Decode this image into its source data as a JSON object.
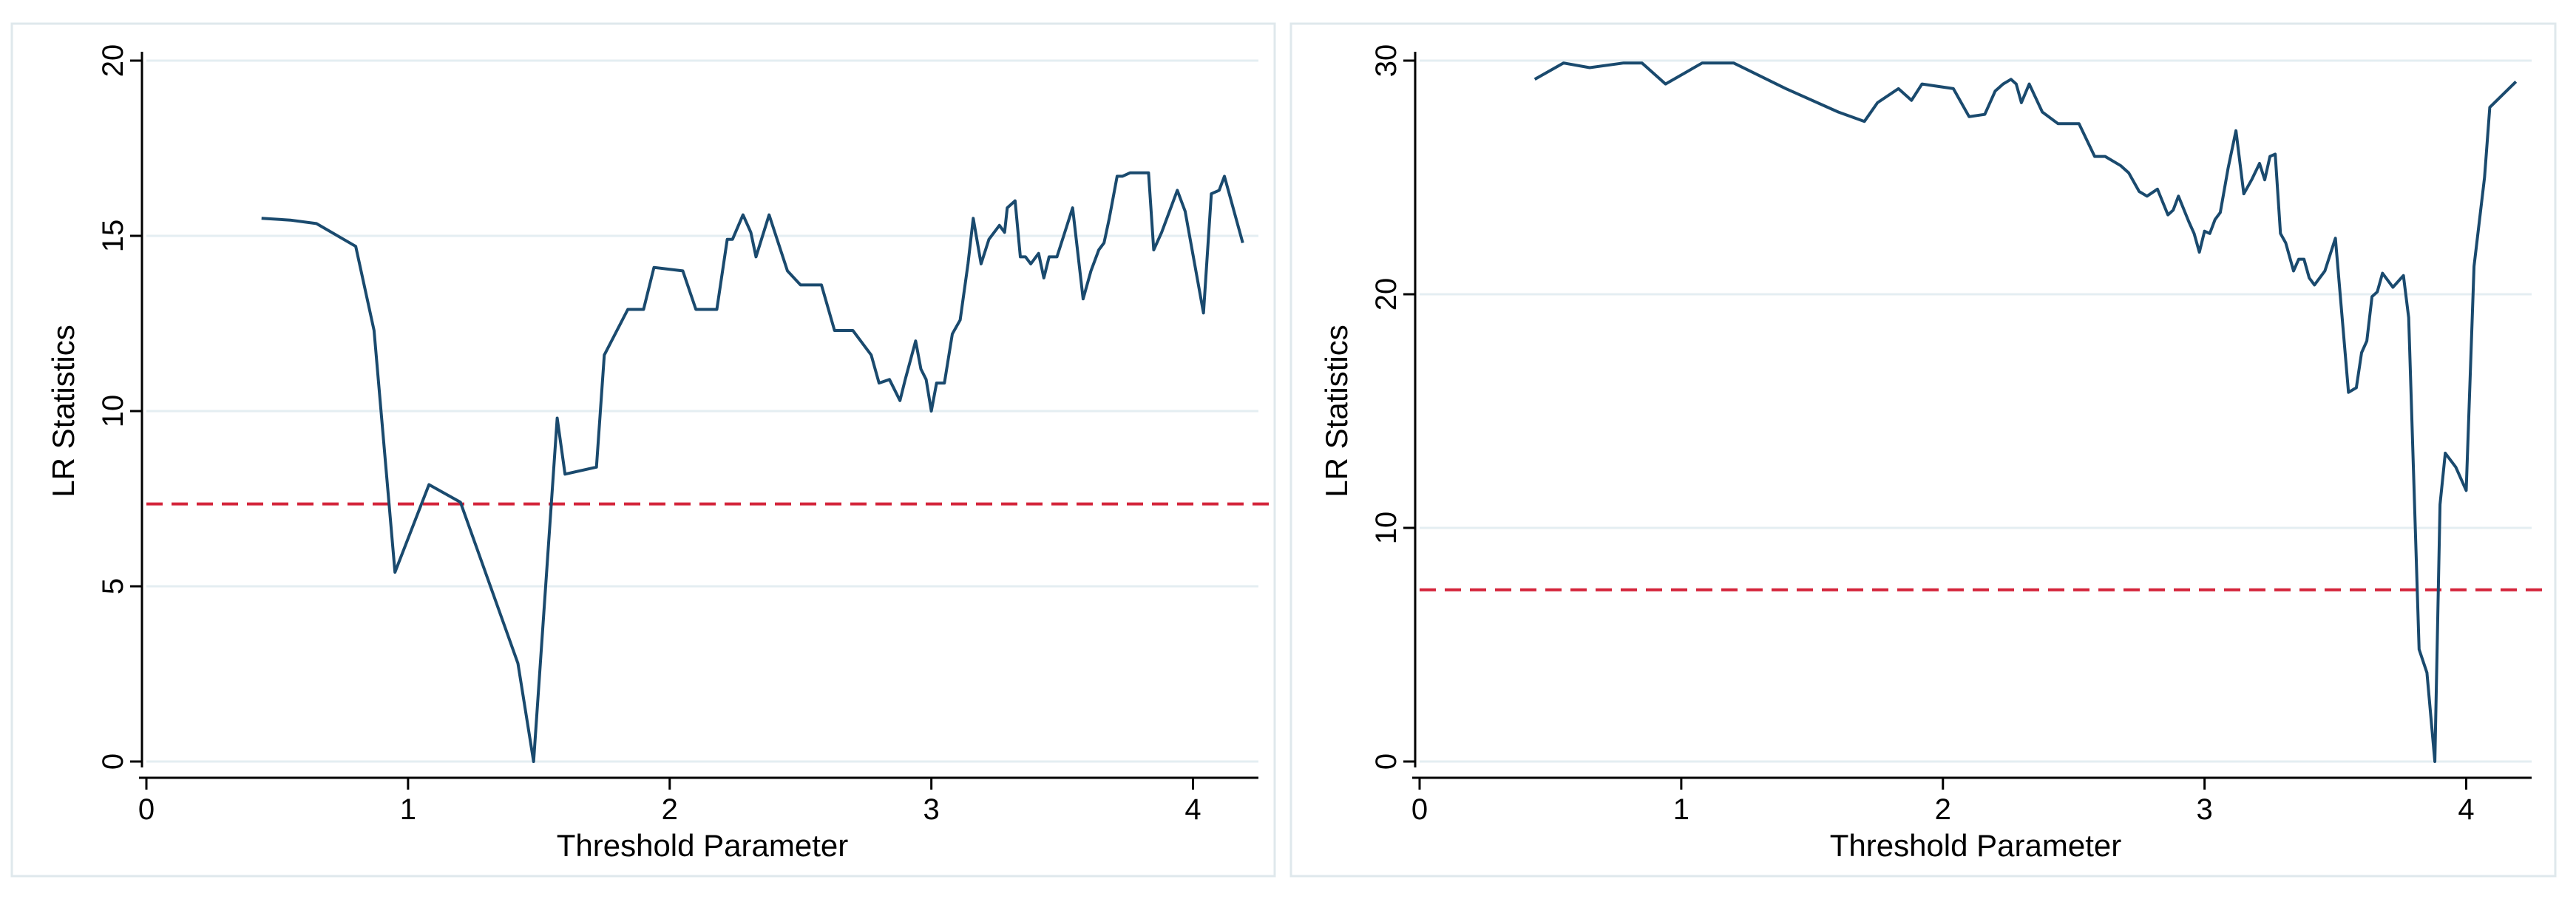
{
  "colors": {
    "background": "#ffffff",
    "panel_border": "#dfe8ec",
    "grid": "#e4eef2",
    "series_line": "#1a4a6e",
    "reference_line": "#d4243a",
    "axis": "#000000"
  },
  "chart_data": [
    {
      "type": "line",
      "title": "",
      "xlabel": "Threshold Parameter",
      "ylabel": "LR Statistics",
      "xlim": [
        0,
        4.25
      ],
      "ylim": [
        0,
        20
      ],
      "xticks": [
        0,
        1,
        2,
        3,
        4
      ],
      "yticks": [
        0,
        5,
        10,
        15,
        20
      ],
      "grid": true,
      "reference_line": {
        "y": 7.35,
        "style": "dashed"
      },
      "series": [
        {
          "x": [
            0.44,
            0.55,
            0.65,
            0.8,
            0.87,
            0.95,
            1.08,
            1.2,
            1.42,
            1.48,
            1.57,
            1.6,
            1.72,
            1.75,
            1.84,
            1.9,
            1.94,
            2.05,
            2.1,
            2.18,
            2.22,
            2.24,
            2.28,
            2.31,
            2.33,
            2.38,
            2.45,
            2.5,
            2.55,
            2.58,
            2.63,
            2.67,
            2.7,
            2.73,
            2.77,
            2.8,
            2.84,
            2.88,
            2.9,
            2.94,
            2.96,
            2.98,
            3.0,
            3.02,
            3.05,
            3.08,
            3.11,
            3.14,
            3.16,
            3.19,
            3.22,
            3.26,
            3.28,
            3.29,
            3.32,
            3.34,
            3.36,
            3.38,
            3.41,
            3.43,
            3.45,
            3.48,
            3.51,
            3.54,
            3.58,
            3.61,
            3.64,
            3.66,
            3.68,
            3.71,
            3.73,
            3.76,
            3.83,
            3.85,
            3.88,
            3.94,
            3.97,
            4.04,
            4.07,
            4.1,
            4.12,
            4.19
          ],
          "y": [
            15.5,
            15.45,
            15.35,
            14.7,
            12.3,
            5.4,
            7.9,
            7.4,
            2.8,
            0.0,
            9.8,
            8.2,
            8.4,
            11.6,
            12.9,
            12.9,
            14.1,
            14.0,
            12.9,
            12.9,
            14.9,
            14.9,
            15.6,
            15.1,
            14.4,
            15.6,
            14.0,
            13.6,
            13.6,
            13.6,
            12.3,
            12.3,
            12.3,
            12.0,
            11.6,
            10.8,
            10.9,
            10.3,
            10.9,
            12.0,
            11.2,
            10.9,
            10.0,
            10.8,
            10.8,
            12.2,
            12.6,
            14.2,
            15.5,
            14.2,
            14.9,
            15.3,
            15.1,
            15.8,
            16.0,
            14.4,
            14.4,
            14.2,
            14.5,
            13.8,
            14.4,
            14.4,
            15.1,
            15.8,
            13.2,
            14.0,
            14.6,
            14.8,
            15.5,
            16.7,
            16.7,
            16.8,
            16.8,
            14.6,
            15.1,
            16.3,
            15.7,
            12.8,
            16.2,
            16.3,
            16.7,
            14.8
          ]
        }
      ]
    },
    {
      "type": "line",
      "title": "",
      "xlabel": "Threshold Parameter",
      "ylabel": "LR Statistics",
      "xlim": [
        0,
        4.25
      ],
      "ylim": [
        0,
        30
      ],
      "xticks": [
        0,
        1,
        2,
        3,
        4
      ],
      "yticks": [
        0,
        10,
        20,
        30
      ],
      "grid": true,
      "reference_line": {
        "y": 7.35,
        "style": "dashed"
      },
      "series": [
        {
          "x": [
            0.44,
            0.55,
            0.65,
            0.78,
            0.85,
            0.94,
            1.08,
            1.2,
            1.4,
            1.6,
            1.7,
            1.75,
            1.83,
            1.88,
            1.92,
            2.04,
            2.1,
            2.16,
            2.2,
            2.23,
            2.26,
            2.28,
            2.3,
            2.33,
            2.38,
            2.44,
            2.52,
            2.58,
            2.62,
            2.68,
            2.71,
            2.75,
            2.78,
            2.82,
            2.86,
            2.88,
            2.9,
            2.94,
            2.96,
            2.98,
            3.0,
            3.02,
            3.04,
            3.06,
            3.09,
            3.12,
            3.15,
            3.18,
            3.21,
            3.23,
            3.25,
            3.27,
            3.29,
            3.31,
            3.34,
            3.36,
            3.38,
            3.4,
            3.42,
            3.46,
            3.5,
            3.55,
            3.58,
            3.6,
            3.62,
            3.64,
            3.66,
            3.68,
            3.72,
            3.76,
            3.78,
            3.82,
            3.85,
            3.88,
            3.9,
            3.92,
            3.96,
            4.0,
            4.03,
            4.07,
            4.09,
            4.19
          ],
          "y": [
            29.2,
            29.9,
            29.7,
            29.9,
            29.9,
            29.0,
            29.9,
            29.9,
            28.8,
            27.8,
            27.4,
            28.2,
            28.8,
            28.3,
            29.0,
            28.8,
            27.6,
            27.7,
            28.7,
            29.0,
            29.2,
            29.0,
            28.2,
            29.0,
            27.8,
            27.3,
            27.3,
            25.9,
            25.9,
            25.5,
            25.2,
            24.4,
            24.2,
            24.5,
            23.4,
            23.6,
            24.2,
            23.1,
            22.6,
            21.8,
            22.7,
            22.6,
            23.2,
            23.5,
            25.4,
            27.0,
            24.3,
            24.9,
            25.6,
            24.9,
            25.9,
            26.0,
            22.6,
            22.2,
            21.0,
            21.5,
            21.5,
            20.7,
            20.4,
            21.0,
            22.4,
            15.8,
            16.0,
            17.5,
            18.0,
            19.9,
            20.1,
            20.9,
            20.3,
            20.8,
            19.0,
            4.8,
            3.8,
            0.0,
            11.0,
            13.2,
            12.6,
            11.6,
            21.2,
            25.0,
            28.0,
            29.1
          ]
        }
      ]
    }
  ]
}
